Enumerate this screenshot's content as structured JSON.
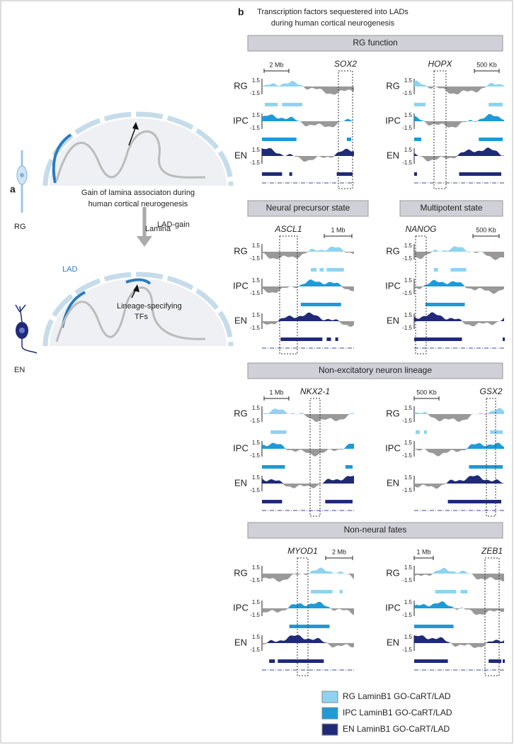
{
  "panel_a": {
    "label": "a",
    "title_lines": [
      "Gain of lamina associaton during",
      "human cortical neurogenesis"
    ],
    "lamina": "Lamina",
    "lad": "LAD",
    "cell_top": "RG",
    "arrow_label": "LAD-gain",
    "cell_bottom": "EN",
    "tf_lines": [
      "Lineage-specifying",
      "TFs"
    ]
  },
  "panel_b": {
    "label": "b",
    "title_lines": [
      "Transcription factors sequestered into LADs",
      "during human cortical neurogenesis"
    ],
    "tracks": [
      "RG",
      "IPC",
      "EN"
    ],
    "track_max": "1.5",
    "track_min": "-1.5",
    "sections": [
      {
        "headers": [
          "RG function"
        ],
        "panels": [
          {
            "gene": "SOX2",
            "scale": "2 Mb"
          },
          {
            "gene": "HOPX",
            "scale": "500 Kb"
          }
        ]
      },
      {
        "headers": [
          "Neural precursor state",
          "Multipotent state"
        ],
        "panels": [
          {
            "gene": "ASCL1",
            "scale": "1 Mb"
          },
          {
            "gene": "NANOG",
            "scale": "500 Kb"
          }
        ]
      },
      {
        "headers": [
          "Non-excitatory neuron lineage"
        ],
        "panels": [
          {
            "gene": "NKX2-1",
            "scale": "1 Mb"
          },
          {
            "gene": "GSX2",
            "scale": "500 Kb"
          }
        ]
      },
      {
        "headers": [
          "Non-neural fates"
        ],
        "panels": [
          {
            "gene": "MYOD1",
            "scale": "2 Mb"
          },
          {
            "gene": "ZEB1",
            "scale": "1 Mb"
          }
        ]
      }
    ],
    "legend": [
      {
        "label": "RG LaminB1 GO-CaRT/LAD",
        "color": "#8fd3f0"
      },
      {
        "label": "IPC LaminB1 GO-CaRT/LAD",
        "color": "#1e9ad6"
      },
      {
        "label": "EN LaminB1 GO-CaRT/LAD",
        "color": "#1f2a78"
      }
    ]
  }
}
